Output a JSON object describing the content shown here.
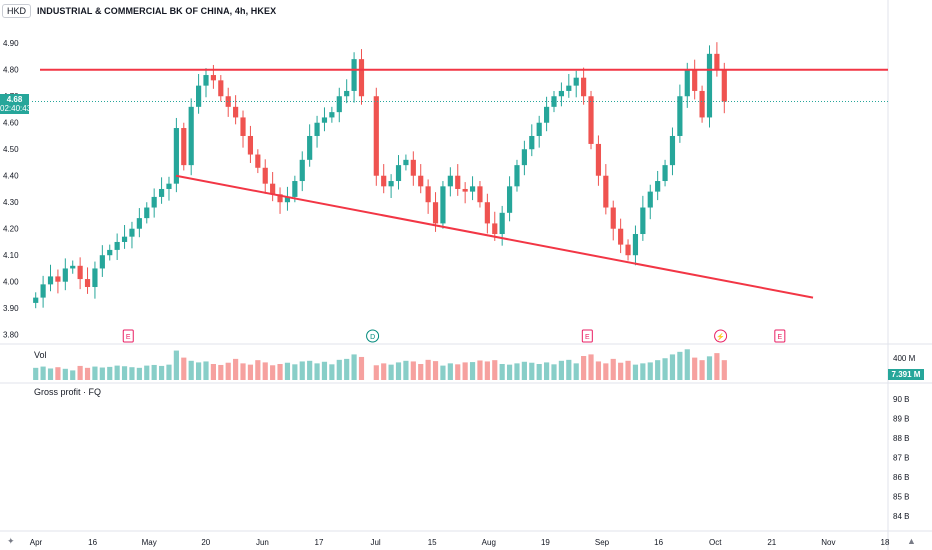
{
  "header": {
    "currency": "HKD",
    "title": "INDUSTRIAL & COMMERCIAL BK OF CHINA, 4h, HKEX"
  },
  "price_badge": {
    "price": "4.68",
    "countdown": "02:40:43",
    "color": "#26a69a"
  },
  "volume_pane": {
    "label": "Vol",
    "scale_label": "400 M",
    "badge": "7.391 M",
    "badge_color": "#26a69a"
  },
  "gross_pane": {
    "label": "Gross profit · FQ",
    "ticks": [
      "90 B",
      "89 B",
      "88 B",
      "87 B",
      "86 B",
      "85 B",
      "84 B"
    ]
  },
  "colors": {
    "up": "#26a69a",
    "down": "#ef5350",
    "trendline": "#f23645",
    "event": "#e91e63",
    "dividend": "#00897b"
  },
  "events": [
    {
      "label": "E",
      "type": "earnings",
      "date_index": 13
    },
    {
      "label": "D",
      "type": "dividend",
      "date_index": 46
    },
    {
      "label": "E",
      "type": "earnings",
      "date_index": 75
    },
    {
      "label": "⚡",
      "type": "split",
      "date_index": 93
    },
    {
      "label": "E",
      "type": "earnings",
      "date_index": 101
    }
  ],
  "chart_data": {
    "type": "candlestick",
    "title": "INDUSTRIAL & COMMERCIAL BK OF CHINA, 4h, HKEX",
    "ylim": [
      3.78,
      4.95
    ],
    "y_ticks": [
      "4.90",
      "4.80",
      "4.70",
      "4.60",
      "4.50",
      "4.40",
      "4.30",
      "4.20",
      "4.10",
      "4.00",
      "3.90",
      "3.80"
    ],
    "x_ticks": [
      "Apr",
      "16",
      "May",
      "20",
      "Jun",
      "17",
      "Jul",
      "15",
      "Aug",
      "19",
      "Sep",
      "16",
      "Oct",
      "21",
      "Nov",
      "18"
    ],
    "last_price": 4.68,
    "horizontal_resistance": 4.8,
    "closes": [
      3.94,
      3.99,
      4.02,
      4.0,
      4.05,
      4.06,
      4.01,
      3.98,
      4.05,
      4.1,
      4.12,
      4.15,
      4.17,
      4.2,
      4.24,
      4.28,
      4.32,
      4.35,
      4.37,
      4.58,
      4.44,
      4.66,
      4.74,
      4.78,
      4.76,
      4.7,
      4.66,
      4.62,
      4.55,
      4.48,
      4.43,
      4.37,
      4.33,
      4.3,
      4.32,
      4.38,
      4.46,
      4.55,
      4.6,
      4.62,
      4.64,
      4.7,
      4.72,
      4.84,
      4.7,
      null,
      4.4,
      4.36,
      4.38,
      4.44,
      4.46,
      4.4,
      4.36,
      4.3,
      4.22,
      4.36,
      4.4,
      4.35,
      4.34,
      4.36,
      4.3,
      4.22,
      4.18,
      4.26,
      4.36,
      4.44,
      4.5,
      4.55,
      4.6,
      4.66,
      4.7,
      4.72,
      4.74,
      4.77,
      4.7,
      4.52,
      4.4,
      4.28,
      4.2,
      4.14,
      4.1,
      4.18,
      4.28,
      4.34,
      4.38,
      4.44,
      4.55,
      4.7,
      4.8,
      4.72,
      4.62,
      4.86,
      4.8,
      4.68
    ],
    "volumes": [
      38,
      42,
      36,
      40,
      35,
      30,
      44,
      38,
      42,
      39,
      41,
      45,
      43,
      40,
      38,
      45,
      47,
      44,
      48,
      92,
      70,
      60,
      55,
      58,
      50,
      47,
      54,
      66,
      52,
      48,
      62,
      55,
      46,
      50,
      54,
      49,
      58,
      60,
      52,
      57,
      49,
      63,
      66,
      80,
      72,
      null,
      46,
      52,
      48,
      55,
      60,
      58,
      50,
      63,
      59,
      45,
      52,
      49,
      55,
      56,
      61,
      58,
      62,
      50,
      48,
      52,
      57,
      54,
      50,
      55,
      49,
      60,
      63,
      52,
      75,
      80,
      58,
      52,
      66,
      54,
      60,
      48,
      52,
      55,
      62,
      68,
      80,
      88,
      96,
      70,
      62,
      74,
      84,
      62
    ],
    "series": [
      {
        "name": "Vol",
        "values_unit": "M"
      }
    ],
    "gross_profit_ylim": [
      84,
      90
    ]
  }
}
